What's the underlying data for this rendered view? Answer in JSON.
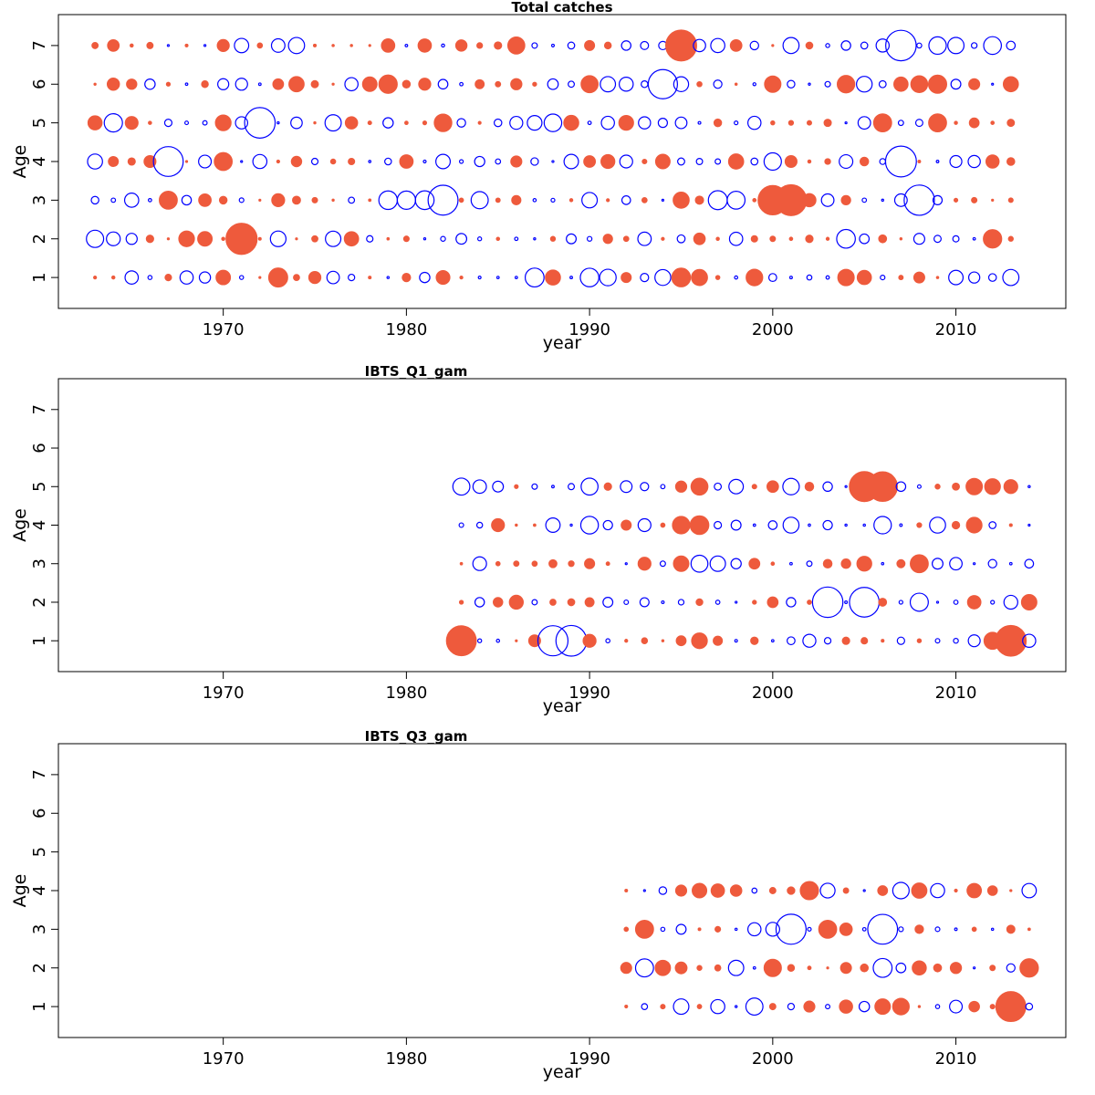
{
  "figure": {
    "background": "#ffffff"
  },
  "chart_data": [
    {
      "type": "scatter",
      "title": "Total catches",
      "xlabel": "year",
      "ylabel": "Age",
      "xlim": [
        1961,
        2016
      ],
      "ylim": [
        0.2,
        7.8
      ],
      "xticks": [
        1970,
        1980,
        1990,
        2000,
        2010
      ],
      "yticks": [
        1,
        2,
        3,
        4,
        5,
        6,
        7
      ],
      "years": [
        1963,
        2013
      ],
      "ages": [
        1,
        2,
        3,
        4,
        5,
        6,
        7
      ],
      "marker_scale": "bubble area proportional to |residual|; filled red = positive, open blue = negative",
      "colors": {
        "positive": "#ee5a3c",
        "negative": "#0000ff"
      },
      "grid": false,
      "legend": "none"
    },
    {
      "type": "scatter",
      "title": "IBTS_Q1_gam",
      "xlabel": "year",
      "ylabel": "Age",
      "xlim": [
        1961,
        2016
      ],
      "ylim": [
        0.2,
        7.8
      ],
      "xticks": [
        1970,
        1980,
        1990,
        2000,
        2010
      ],
      "yticks": [
        1,
        2,
        3,
        4,
        5,
        6,
        7
      ],
      "years": [
        1983,
        2014
      ],
      "ages": [
        1,
        2,
        3,
        4,
        5
      ],
      "colors": {
        "positive": "#ee5a3c",
        "negative": "#0000ff"
      },
      "grid": false,
      "legend": "none"
    },
    {
      "type": "scatter",
      "title": "IBTS_Q3_gam",
      "xlabel": "year",
      "ylabel": "Age",
      "xlim": [
        1961,
        2016
      ],
      "ylim": [
        0.2,
        7.8
      ],
      "xticks": [
        1970,
        1980,
        1990,
        2000,
        2010
      ],
      "yticks": [
        1,
        2,
        3,
        4,
        5,
        6,
        7
      ],
      "years": [
        1992,
        2014
      ],
      "ages": [
        1,
        2,
        3,
        4
      ],
      "colors": {
        "positive": "#ee5a3c",
        "negative": "#0000ff"
      },
      "grid": false,
      "legend": "none"
    }
  ]
}
